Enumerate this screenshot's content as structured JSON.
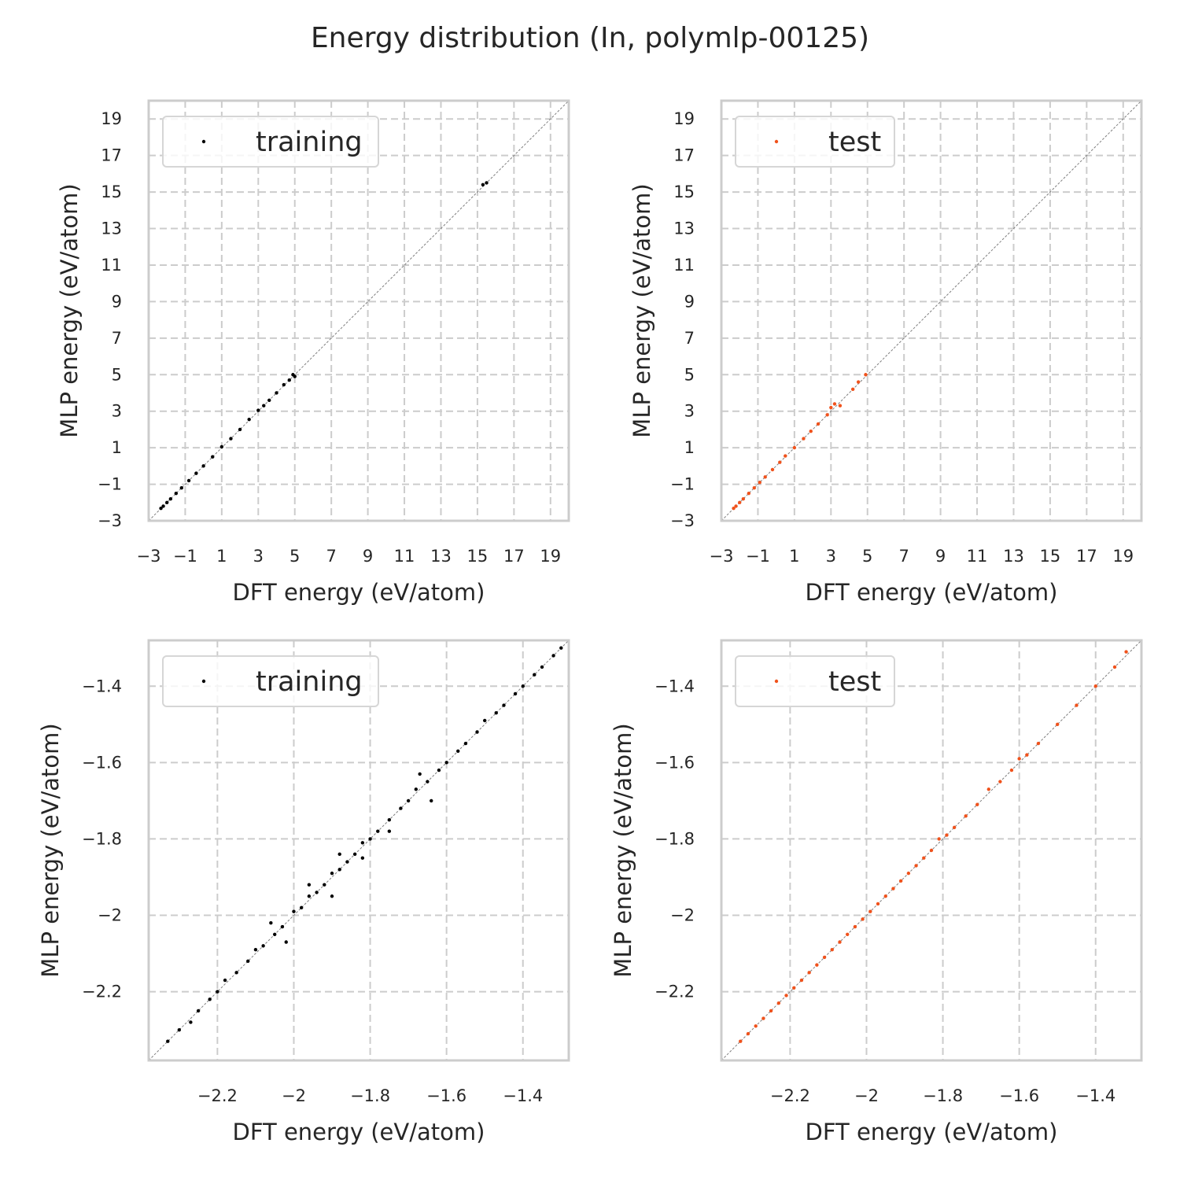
{
  "title": "Energy distribution (In, polymlp-00125)",
  "colors": {
    "training": "#000000",
    "test": "#f0521c",
    "grid": "#cccccc",
    "frame": "#cccccc",
    "diagonal": "#808080"
  },
  "chart_data": [
    {
      "type": "scatter",
      "panel": "top-left",
      "xlabel": "DFT energy (eV/atom)",
      "ylabel": "MLP energy (eV/atom)",
      "xlim": [
        -3.0,
        20.0
      ],
      "ylim": [
        -3.0,
        20.0
      ],
      "xticks": [
        -3,
        -1,
        1,
        3,
        5,
        7,
        9,
        11,
        13,
        15,
        17,
        19
      ],
      "yticks": [
        -3,
        -1,
        1,
        3,
        5,
        7,
        9,
        11,
        13,
        15,
        17,
        19
      ],
      "grid": true,
      "legend_placement": "upper-left",
      "reference_line": "y = x",
      "series": [
        {
          "name": "training",
          "color": "#000000",
          "x": [
            -2.33,
            -2.2,
            -2.0,
            -1.8,
            -1.5,
            -1.2,
            -0.8,
            -0.4,
            0.0,
            0.5,
            1.0,
            1.5,
            2.0,
            2.5,
            3.0,
            3.3,
            3.6,
            4.0,
            4.4,
            4.7,
            4.9,
            5.0,
            15.3,
            15.5
          ],
          "y": [
            -2.32,
            -2.2,
            -2.0,
            -1.8,
            -1.5,
            -1.2,
            -0.8,
            -0.4,
            0.0,
            0.5,
            1.05,
            1.5,
            2.0,
            2.55,
            3.05,
            3.3,
            3.6,
            4.0,
            4.45,
            4.7,
            5.0,
            4.9,
            15.4,
            15.5
          ]
        }
      ]
    },
    {
      "type": "scatter",
      "panel": "top-right",
      "xlabel": "DFT energy (eV/atom)",
      "ylabel": "MLP energy (eV/atom)",
      "xlim": [
        -3.0,
        20.0
      ],
      "ylim": [
        -3.0,
        20.0
      ],
      "xticks": [
        -3,
        -1,
        1,
        3,
        5,
        7,
        9,
        11,
        13,
        15,
        17,
        19
      ],
      "yticks": [
        -3,
        -1,
        1,
        3,
        5,
        7,
        9,
        11,
        13,
        15,
        17,
        19
      ],
      "grid": true,
      "legend_placement": "upper-left",
      "reference_line": "y = x",
      "series": [
        {
          "name": "test",
          "color": "#f0521c",
          "x": [
            -2.33,
            -2.2,
            -2.0,
            -1.8,
            -1.5,
            -1.2,
            -0.9,
            -0.6,
            -0.2,
            0.2,
            0.5,
            1.0,
            1.5,
            1.9,
            2.3,
            2.8,
            3.0,
            3.2,
            3.5,
            4.2,
            4.5,
            4.9
          ],
          "y": [
            -2.32,
            -2.2,
            -2.0,
            -1.8,
            -1.5,
            -1.2,
            -0.9,
            -0.6,
            -0.2,
            0.2,
            0.55,
            1.0,
            1.5,
            1.9,
            2.3,
            2.8,
            3.2,
            3.4,
            3.3,
            4.2,
            4.6,
            5.0
          ]
        }
      ]
    },
    {
      "type": "scatter",
      "panel": "bottom-left",
      "xlabel": "DFT energy (eV/atom)",
      "ylabel": "MLP energy (eV/atom)",
      "xlim": [
        -2.38,
        -1.28
      ],
      "ylim": [
        -2.38,
        -1.28
      ],
      "xticks": [
        -2.2,
        -2.0,
        -1.8,
        -1.6,
        -1.4
      ],
      "yticks": [
        -2.2,
        -2.0,
        -1.8,
        -1.6,
        -1.4
      ],
      "grid": true,
      "legend_placement": "upper-left",
      "reference_line": "y = x",
      "series": [
        {
          "name": "training",
          "color": "#000000",
          "x": [
            -2.33,
            -2.3,
            -2.27,
            -2.25,
            -2.22,
            -2.2,
            -2.18,
            -2.15,
            -2.12,
            -2.1,
            -2.08,
            -2.05,
            -2.03,
            -2.0,
            -1.98,
            -1.96,
            -1.94,
            -1.92,
            -1.9,
            -1.88,
            -1.86,
            -1.84,
            -1.82,
            -1.8,
            -1.78,
            -1.75,
            -1.72,
            -1.7,
            -1.68,
            -1.65,
            -1.62,
            -1.6,
            -1.57,
            -1.55,
            -1.52,
            -1.5,
            -1.47,
            -1.45,
            -1.42,
            -1.4,
            -1.37,
            -1.35,
            -1.32,
            -1.3,
            -2.06,
            -2.02,
            -1.96,
            -1.9,
            -1.88,
            -1.82,
            -1.75,
            -1.67,
            -1.64
          ],
          "y": [
            -2.33,
            -2.3,
            -2.28,
            -2.25,
            -2.22,
            -2.2,
            -2.17,
            -2.15,
            -2.12,
            -2.09,
            -2.08,
            -2.05,
            -2.03,
            -1.99,
            -1.98,
            -1.95,
            -1.94,
            -1.92,
            -1.89,
            -1.88,
            -1.86,
            -1.84,
            -1.81,
            -1.8,
            -1.78,
            -1.75,
            -1.72,
            -1.7,
            -1.67,
            -1.65,
            -1.62,
            -1.6,
            -1.57,
            -1.55,
            -1.52,
            -1.49,
            -1.47,
            -1.45,
            -1.42,
            -1.4,
            -1.37,
            -1.35,
            -1.32,
            -1.3,
            -2.02,
            -2.07,
            -1.92,
            -1.95,
            -1.84,
            -1.85,
            -1.78,
            -1.63,
            -1.7
          ]
        }
      ]
    },
    {
      "type": "scatter",
      "panel": "bottom-right",
      "xlabel": "DFT energy (eV/atom)",
      "ylabel": "MLP energy (eV/atom)",
      "xlim": [
        -2.38,
        -1.28
      ],
      "ylim": [
        -2.38,
        -1.28
      ],
      "xticks": [
        -2.2,
        -2.0,
        -1.8,
        -1.6,
        -1.4
      ],
      "yticks": [
        -2.2,
        -2.0,
        -1.8,
        -1.6,
        -1.4
      ],
      "grid": true,
      "legend_placement": "upper-left",
      "reference_line": "y = x",
      "series": [
        {
          "name": "test",
          "color": "#f0521c",
          "x": [
            -2.33,
            -2.31,
            -2.29,
            -2.27,
            -2.25,
            -2.23,
            -2.21,
            -2.19,
            -2.17,
            -2.15,
            -2.13,
            -2.11,
            -2.09,
            -2.07,
            -2.05,
            -2.03,
            -2.01,
            -1.99,
            -1.97,
            -1.95,
            -1.93,
            -1.91,
            -1.89,
            -1.87,
            -1.85,
            -1.83,
            -1.81,
            -1.79,
            -1.77,
            -1.74,
            -1.71,
            -1.68,
            -1.65,
            -1.62,
            -1.6,
            -1.58,
            -1.55,
            -1.5,
            -1.45,
            -1.4,
            -1.35,
            -1.32
          ],
          "y": [
            -2.33,
            -2.31,
            -2.29,
            -2.27,
            -2.25,
            -2.23,
            -2.21,
            -2.19,
            -2.17,
            -2.15,
            -2.13,
            -2.11,
            -2.09,
            -2.07,
            -2.05,
            -2.03,
            -2.01,
            -1.99,
            -1.97,
            -1.95,
            -1.93,
            -1.91,
            -1.89,
            -1.87,
            -1.85,
            -1.83,
            -1.8,
            -1.79,
            -1.77,
            -1.74,
            -1.71,
            -1.67,
            -1.65,
            -1.62,
            -1.59,
            -1.58,
            -1.55,
            -1.5,
            -1.45,
            -1.4,
            -1.35,
            -1.31
          ]
        }
      ]
    }
  ]
}
